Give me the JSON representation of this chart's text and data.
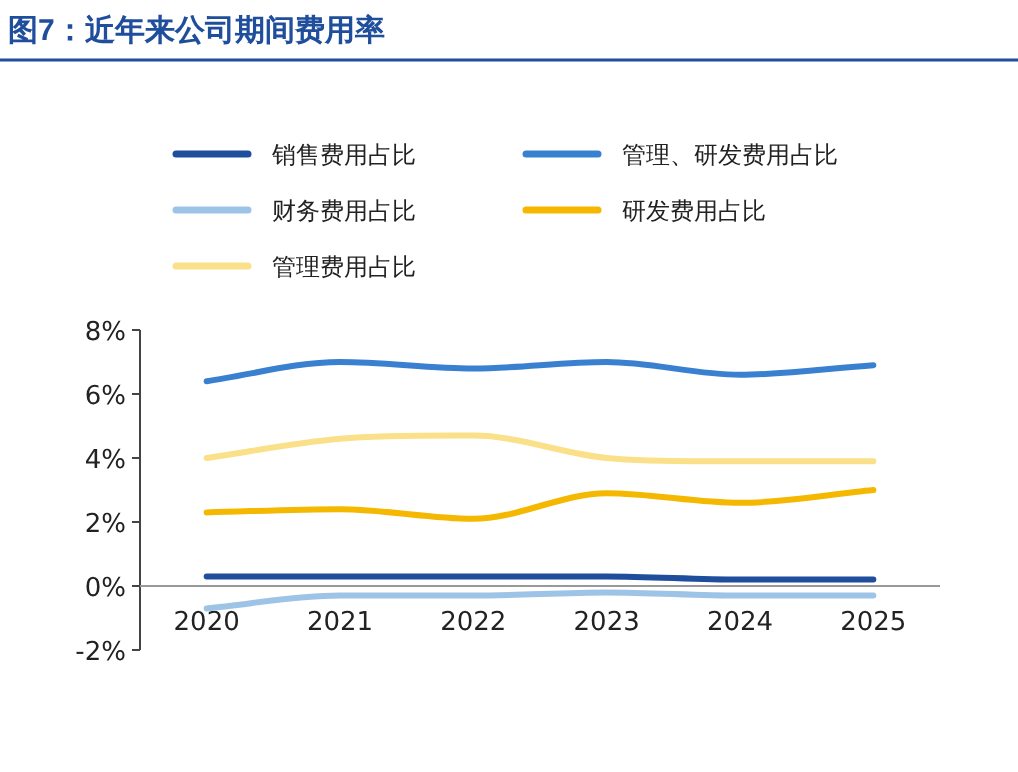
{
  "chart_data": {
    "type": "line",
    "title": "图7：近年来公司期间费用率",
    "categories": [
      "2020",
      "2021",
      "2022",
      "2023",
      "2024",
      "2025"
    ],
    "series": [
      {
        "name": "销售费用占比",
        "color": "#1f4e9c",
        "values": [
          0.3,
          0.3,
          0.3,
          0.3,
          0.2,
          0.2
        ]
      },
      {
        "name": "管理、研发费用占比",
        "color": "#3a80d0",
        "values": [
          6.4,
          7.0,
          6.8,
          7.0,
          6.6,
          6.9
        ]
      },
      {
        "name": "财务费用占比",
        "color": "#9dc3e6",
        "values": [
          -0.7,
          -0.3,
          -0.3,
          -0.2,
          -0.3,
          -0.3
        ]
      },
      {
        "name": "研发费用占比",
        "color": "#f5b800",
        "values": [
          2.3,
          2.4,
          2.1,
          2.9,
          2.6,
          3.0
        ]
      },
      {
        "name": "管理费用占比",
        "color": "#fbe08a",
        "values": [
          4.0,
          4.6,
          4.7,
          4.0,
          3.9,
          3.9
        ]
      }
    ],
    "ylim": [
      -2,
      8
    ],
    "yticks": [
      {
        "value": -2,
        "label": "-2%"
      },
      {
        "value": 0,
        "label": "0%"
      },
      {
        "value": 2,
        "label": "2%"
      },
      {
        "value": 4,
        "label": "4%"
      },
      {
        "value": 6,
        "label": "6%"
      },
      {
        "value": 8,
        "label": "8%"
      }
    ],
    "legend": "top",
    "grid": false
  }
}
